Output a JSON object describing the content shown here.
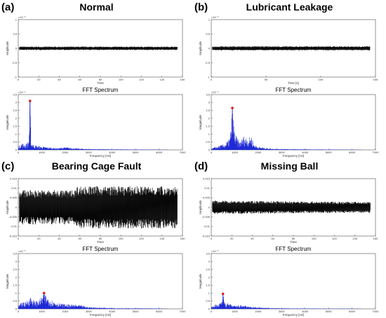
{
  "panels": [
    {
      "label": "(a)",
      "title": "Normal"
    },
    {
      "label": "(b)",
      "title": "Lubricant Leakage"
    },
    {
      "label": "(c)",
      "title": "Bearing Cage Fault"
    },
    {
      "label": "(d)",
      "title": "Missing Ball"
    }
  ],
  "colors": {
    "signal": "#000000",
    "spectrum": "#1f2bd6",
    "peak": "#e41a1c",
    "frame": "#4d4d4d"
  },
  "chart_data": [
    {
      "type": "line",
      "panel": "(a)",
      "subplot": "time",
      "title": "",
      "xlabel": "Time",
      "ylabel": "Amplitude",
      "xlim": [
        0,
        160
      ],
      "xticks": [
        0,
        20,
        40,
        60,
        80,
        100,
        120,
        140,
        160
      ],
      "ylim": [
        -1,
        1
      ],
      "yticks": [
        -1,
        -0.5,
        0,
        0.5,
        1
      ],
      "yexp": "×10⁻³",
      "envelope": {
        "x": [
          1,
          155
        ],
        "upper": [
          0.06,
          0.06
        ],
        "lower": [
          -0.06,
          -0.06
        ]
      }
    },
    {
      "type": "line",
      "panel": "(a)",
      "subplot": "spectrum",
      "title": "FFT Spectrum",
      "xlabel": "Frequency [Hz]",
      "ylabel": "Magnitude",
      "xlim": [
        0,
        7000
      ],
      "xticks": [
        0,
        1000,
        2000,
        3000,
        4000,
        5000,
        6000,
        7000
      ],
      "ylim": [
        0,
        3.5
      ],
      "yticks": [
        0,
        0.5,
        1,
        1.5,
        2,
        2.5,
        3,
        3.5
      ],
      "yexp": "×10⁻⁴",
      "peak": {
        "x": 500,
        "y": 3.1
      },
      "series": [
        {
          "x": [
            0,
            150,
            300,
            450,
            500,
            550,
            700,
            900,
            1100,
            1400,
            1700,
            2000,
            2500,
            3000,
            4000,
            5000,
            6000,
            6400
          ],
          "y": [
            0.2,
            0.45,
            0.35,
            0.6,
            3.1,
            0.5,
            0.3,
            0.25,
            0.2,
            0.15,
            0.12,
            0.18,
            0.1,
            0.06,
            0.04,
            0.03,
            0.02,
            0.01
          ]
        }
      ]
    },
    {
      "type": "line",
      "panel": "(b)",
      "subplot": "time",
      "title": "",
      "xlabel": "Time [s]",
      "ylabel": "Amplitude",
      "xlim": [
        0,
        150
      ],
      "xticks": [
        0,
        50,
        100,
        150
      ],
      "ylim": [
        -1,
        1
      ],
      "yticks": [
        -1,
        -0.5,
        0,
        0.5,
        1
      ],
      "yexp": "×10⁻³",
      "envelope": {
        "x": [
          1,
          145
        ],
        "upper": [
          0.07,
          0.07
        ],
        "lower": [
          -0.07,
          -0.07
        ]
      }
    },
    {
      "type": "line",
      "panel": "(b)",
      "subplot": "spectrum",
      "title": "FFT Spectrum",
      "xlabel": "Frequency [Hz]",
      "ylabel": "Magnitude",
      "xlim": [
        0,
        7000
      ],
      "xticks": [
        0,
        1000,
        2000,
        3000,
        4000,
        5000,
        6000,
        7000
      ],
      "ylim": [
        0,
        3.5
      ],
      "yticks": [
        0,
        0.5,
        1,
        1.5,
        2,
        2.5,
        3,
        3.5
      ],
      "yexp": "×10⁻⁴",
      "peak": {
        "x": 900,
        "y": 2.65
      },
      "series": [
        {
          "x": [
            0,
            200,
            400,
            600,
            800,
            900,
            1000,
            1200,
            1400,
            1600,
            1700,
            1800,
            2000,
            2500,
            3000,
            4000,
            5000,
            6000,
            6400
          ],
          "y": [
            0.1,
            0.2,
            0.3,
            0.4,
            0.8,
            2.65,
            1.1,
            0.5,
            0.9,
            0.7,
            1.0,
            0.4,
            0.2,
            0.1,
            0.06,
            0.04,
            0.03,
            0.02,
            0.01
          ]
        }
      ]
    },
    {
      "type": "line",
      "panel": "(c)",
      "subplot": "time",
      "title": "",
      "xlabel": "Time",
      "ylabel": "Amplitude",
      "xlim": [
        0,
        160
      ],
      "xticks": [
        0,
        20,
        40,
        60,
        80,
        100,
        120,
        140,
        160
      ],
      "ylim": [
        -0.015,
        0.015
      ],
      "yticks": [
        -0.015,
        -0.01,
        -0.005,
        0,
        0.005,
        0.01,
        0.015
      ],
      "envelope": {
        "x": [
          1,
          55,
          57,
          155
        ],
        "upper": [
          0.009,
          0.009,
          0.011,
          0.011
        ],
        "lower": [
          -0.009,
          -0.009,
          -0.011,
          -0.011
        ]
      }
    },
    {
      "type": "line",
      "panel": "(c)",
      "subplot": "spectrum",
      "title": "FFT Spectrum",
      "xlabel": "Frequency [Hz]",
      "ylabel": "Magnitude",
      "xlim": [
        0,
        7000
      ],
      "xticks": [
        0,
        1000,
        2000,
        3000,
        4000,
        5000,
        6000,
        7000
      ],
      "ylim": [
        0,
        3.5
      ],
      "yticks": [
        0,
        0.5,
        1,
        1.5,
        2,
        2.5,
        3,
        3.5
      ],
      "yexp": "×10⁻³",
      "peak": {
        "x": 1100,
        "y": 1.0
      },
      "series": [
        {
          "x": [
            0,
            200,
            300,
            500,
            700,
            900,
            1100,
            1300,
            1500,
            1800,
            2100,
            2600,
            3000,
            4000,
            5000,
            6000,
            6400
          ],
          "y": [
            0.2,
            0.5,
            0.4,
            0.8,
            0.5,
            0.6,
            1.0,
            0.7,
            0.5,
            0.35,
            0.3,
            0.25,
            0.12,
            0.06,
            0.04,
            0.03,
            0.01
          ]
        }
      ]
    },
    {
      "type": "line",
      "panel": "(d)",
      "subplot": "time",
      "title": "",
      "xlabel": "Time",
      "ylabel": "Amplitude",
      "xlim": [
        0,
        160
      ],
      "xticks": [
        0,
        20,
        40,
        60,
        80,
        100,
        120,
        140,
        160
      ],
      "ylim": [
        -0.015,
        0.015
      ],
      "yticks": [
        -0.015,
        -0.01,
        -0.005,
        0,
        0.005,
        0.01,
        0.015
      ],
      "envelope": {
        "x": [
          1,
          155
        ],
        "upper": [
          0.0035,
          0.0028
        ],
        "lower": [
          -0.0035,
          -0.0028
        ]
      }
    },
    {
      "type": "line",
      "panel": "(d)",
      "subplot": "spectrum",
      "title": "FFT Spectrum",
      "xlabel": "Frequency [Hz]",
      "ylabel": "Magnitude",
      "xlim": [
        0,
        7000
      ],
      "xticks": [
        0,
        1000,
        2000,
        3000,
        4000,
        5000,
        6000,
        7000
      ],
      "ylim": [
        0,
        3.5
      ],
      "yticks": [
        0,
        0.5,
        1,
        1.5,
        2,
        2.5,
        3,
        3.5
      ],
      "yexp": "×10⁻³",
      "peak": {
        "x": 500,
        "y": 0.95
      },
      "series": [
        {
          "x": [
            0,
            150,
            300,
            450,
            500,
            600,
            800,
            1000,
            1300,
            1600,
            2000,
            2500,
            3000,
            4000,
            5000,
            6000,
            6400
          ],
          "y": [
            0.1,
            0.3,
            0.25,
            0.5,
            0.95,
            0.4,
            0.3,
            0.2,
            0.25,
            0.15,
            0.1,
            0.06,
            0.04,
            0.03,
            0.02,
            0.02,
            0.01
          ]
        }
      ]
    }
  ]
}
